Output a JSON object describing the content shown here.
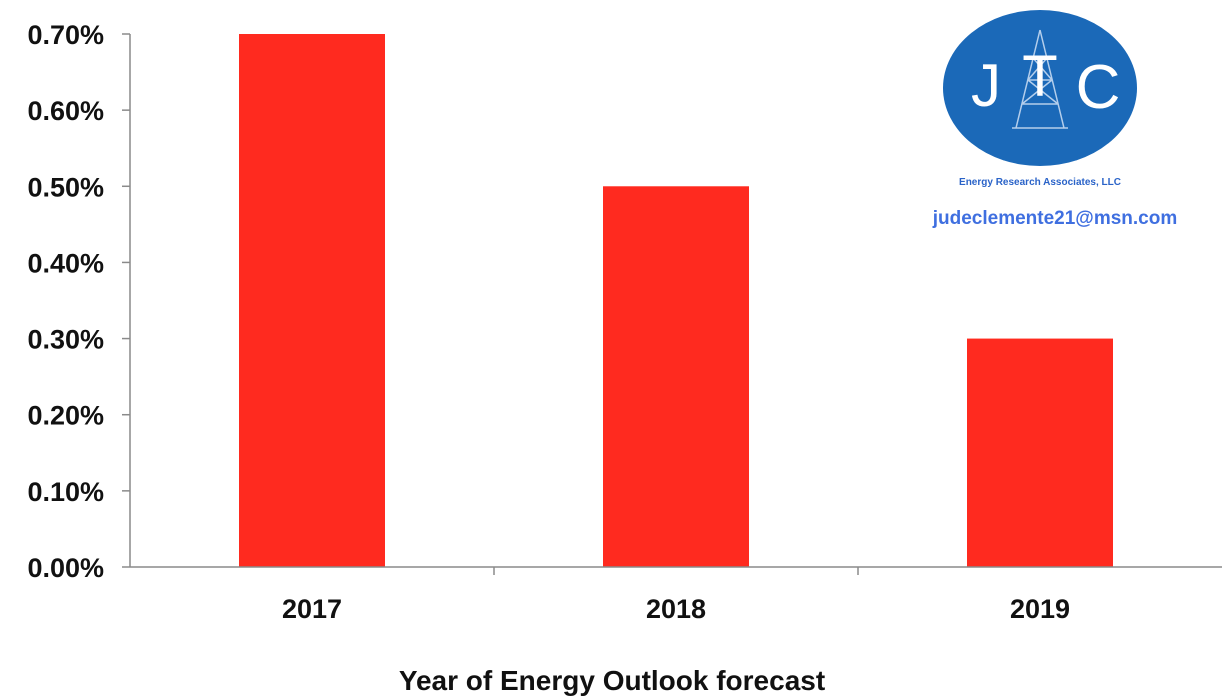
{
  "chart_data": {
    "type": "bar",
    "categories": [
      "2017",
      "2018",
      "2019"
    ],
    "values": [
      0.7,
      0.5,
      0.3
    ],
    "unit": "%",
    "yticks": [
      "0.00%",
      "0.10%",
      "0.20%",
      "0.30%",
      "0.40%",
      "0.50%",
      "0.60%",
      "0.70%"
    ],
    "ylim": [
      0,
      0.7
    ],
    "xlabel": "Year of Energy Outlook forecast",
    "ylabel": "",
    "grid": false,
    "bar_color": "#ff2a1f"
  },
  "logo": {
    "letters": [
      "J",
      "T",
      "C"
    ],
    "subtitle": "Energy Research Associates, LLC",
    "email": "judeclemente21@msn.com",
    "circle_color": "#1b69b8"
  }
}
